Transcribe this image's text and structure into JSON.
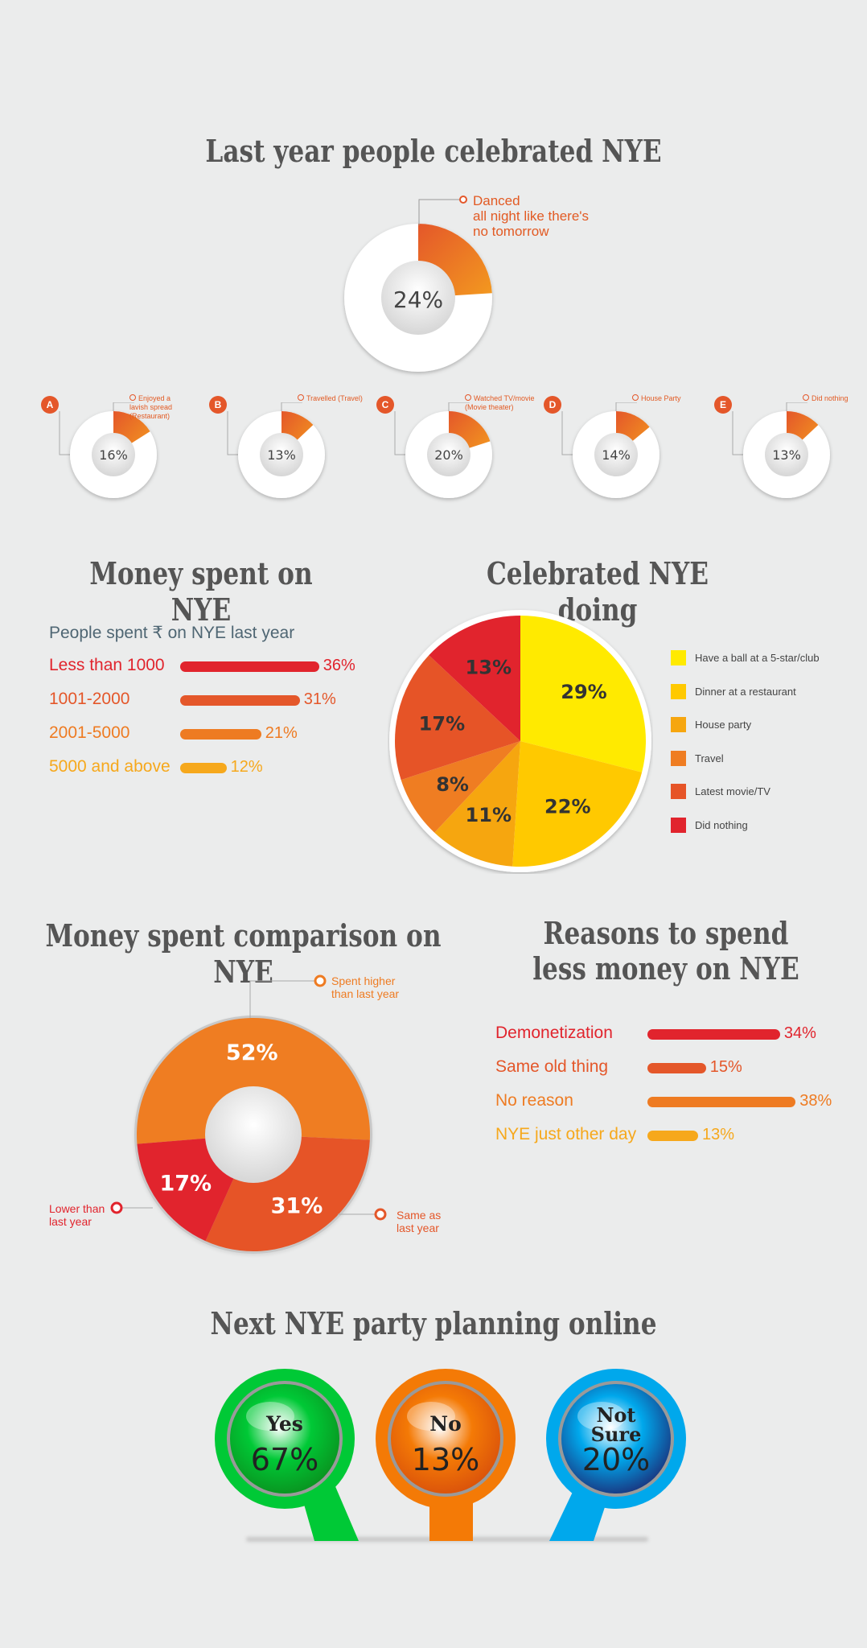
{
  "section1": {
    "title": "Last year people celebrated NYE",
    "main": {
      "value": "24%",
      "fraction": 0.24,
      "label_lines": [
        "Danced",
        "all night like there's",
        "no tomorrow"
      ]
    },
    "small": [
      {
        "badge": "A",
        "value": "16%",
        "fraction": 0.16,
        "label_lines": [
          "Enjoyed a",
          "lavish spread",
          "(Restaurant)"
        ]
      },
      {
        "badge": "B",
        "value": "13%",
        "fraction": 0.13,
        "label_lines": [
          "Travelled (Travel)"
        ]
      },
      {
        "badge": "C",
        "value": "20%",
        "fraction": 0.2,
        "label_lines": [
          "Watched TV/movie",
          "(Movie theater)"
        ]
      },
      {
        "badge": "D",
        "value": "14%",
        "fraction": 0.14,
        "label_lines": [
          "House Party"
        ]
      },
      {
        "badge": "E",
        "value": "13%",
        "fraction": 0.13,
        "label_lines": [
          "Did nothing"
        ]
      }
    ]
  },
  "money_spent": {
    "title": "Money spent on NYE",
    "subtitle": "People spent ₹ on NYE last year",
    "rows": [
      {
        "label": "Less than 1000",
        "pct": "36%",
        "value": 36,
        "color": "#e1242d"
      },
      {
        "label": "1001-2000",
        "pct": "31%",
        "value": 31,
        "color": "#e4572a"
      },
      {
        "label": "2001-5000",
        "pct": "21%",
        "value": 21,
        "color": "#ee7b22"
      },
      {
        "label": "5000 and above",
        "pct": "12%",
        "value": 12,
        "color": "#f6a81c"
      }
    ]
  },
  "celebrated_doing": {
    "title": "Celebrated NYE doing",
    "legend": [
      {
        "label": "Have a ball at a 5-star/club",
        "color": "#ffea00"
      },
      {
        "label": "Dinner at a restaurant",
        "color": "#ffc900"
      },
      {
        "label": "House party",
        "color": "#f6a60f"
      },
      {
        "label": "Travel",
        "color": "#ef7d22"
      },
      {
        "label": "Latest movie/TV",
        "color": "#e65427"
      },
      {
        "label": "Did nothing",
        "color": "#e1242d"
      }
    ]
  },
  "chart_data": [
    {
      "type": "pie",
      "title": "Celebrated NYE doing",
      "categories": [
        "Have a ball at a 5-star/club",
        "Dinner at a restaurant",
        "House party",
        "Travel",
        "Latest movie/TV",
        "Did nothing"
      ],
      "values": [
        29,
        22,
        11,
        8,
        17,
        13
      ],
      "labels": [
        "29%",
        "22%",
        "11%",
        "8%",
        "17%",
        "13%"
      ],
      "colors": [
        "#ffea00",
        "#ffc900",
        "#f6a60f",
        "#ef7d22",
        "#e65427",
        "#e1242d"
      ],
      "legend": "right"
    },
    {
      "type": "pie",
      "title": "Money spent comparison on NYE",
      "categories": [
        "Spent higher than last year",
        "Same as last year",
        "Lower than last year"
      ],
      "values": [
        52,
        31,
        17
      ],
      "labels": [
        "52%",
        "31%",
        "17%"
      ],
      "colors": [
        "#ef7d22",
        "#e65427",
        "#e1242d"
      ]
    },
    {
      "type": "bar",
      "title": "Money spent on NYE",
      "categories": [
        "Less than 1000",
        "1001-2000",
        "2001-5000",
        "5000 and above"
      ],
      "values": [
        36,
        31,
        21,
        12
      ]
    },
    {
      "type": "bar",
      "title": "Reasons to spend less money on NYE",
      "categories": [
        "Demonetization",
        "Same old thing",
        "No reason",
        "NYE just other day"
      ],
      "values": [
        34,
        15,
        38,
        13
      ]
    }
  ],
  "comparison": {
    "title": "Money spent comparison on NYE",
    "higher_lines": [
      "Spent higher",
      "than last year"
    ],
    "same_lines": [
      "Same as",
      "last year"
    ],
    "lower_lines": [
      "Lower than",
      "last year"
    ]
  },
  "reasons": {
    "title_lines": [
      "Reasons to spend",
      "less money on NYE"
    ],
    "rows": [
      {
        "label": "Demonetization",
        "pct": "34%",
        "value": 34,
        "color": "#e1242d"
      },
      {
        "label": "Same old thing",
        "pct": "15%",
        "value": 15,
        "color": "#e4572a"
      },
      {
        "label": "No reason",
        "pct": "38%",
        "value": 38,
        "color": "#ee7b22"
      },
      {
        "label": "NYE just other day",
        "pct": "13%",
        "value": 13,
        "color": "#f6a81c"
      }
    ]
  },
  "planning": {
    "title": "Next NYE party planning online",
    "options": [
      {
        "label": "Yes",
        "pct": "67%",
        "color": "#00c936",
        "dark": "#0a8f1e"
      },
      {
        "label": "No",
        "pct": "13%",
        "color": "#f47a06",
        "dark": "#d84f0b"
      },
      {
        "label_lines": [
          "Not",
          "Sure"
        ],
        "pct": "20%",
        "color": "#00a8ec",
        "dark": "#1b2d78"
      }
    ]
  }
}
